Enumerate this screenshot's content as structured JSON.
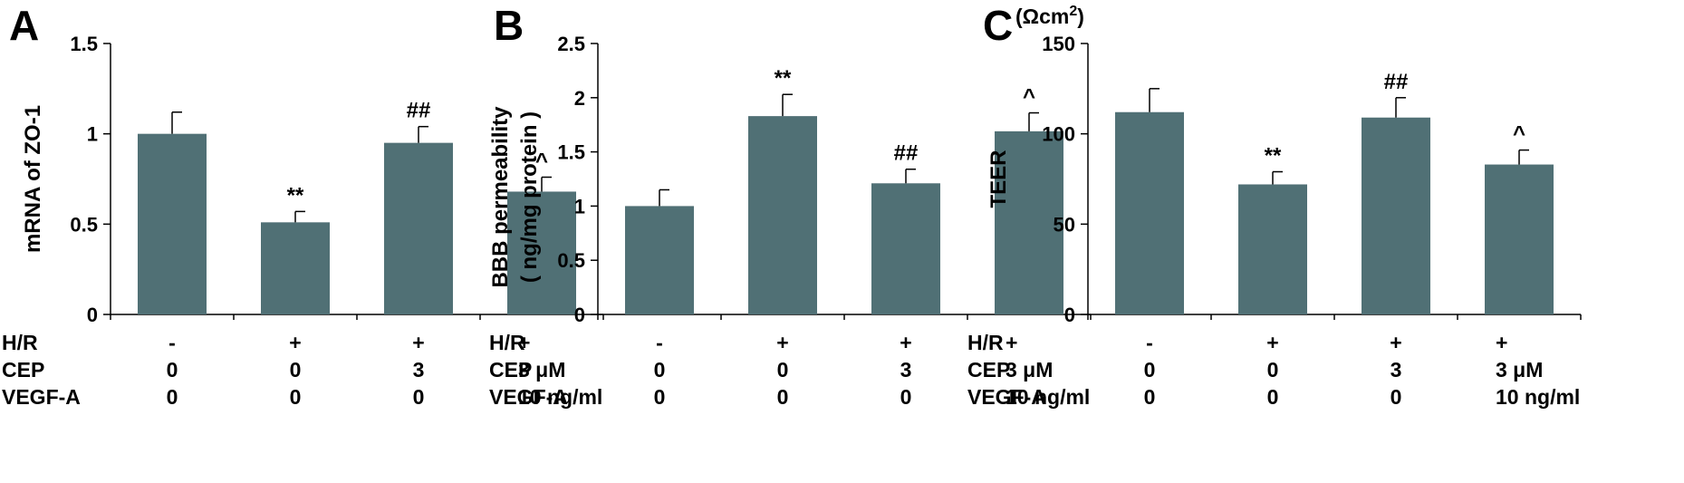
{
  "figure": {
    "row_labels": [
      "H/R",
      "CEP",
      "VEGF-A"
    ],
    "conditions": [
      [
        "-",
        "0",
        "0"
      ],
      [
        "+",
        "0",
        "0"
      ],
      [
        "+",
        "3",
        "0"
      ],
      [
        "+",
        "3 μM",
        "10 ng/ml"
      ]
    ],
    "bar_color": "#507075",
    "axis_color": "#000000"
  },
  "chart_data": [
    {
      "type": "bar",
      "panel": "A",
      "ylabel_lines": [
        "mRNA of ZO-1"
      ],
      "unit": "",
      "ylim": [
        0,
        1.5
      ],
      "yticks": [
        0,
        0.5,
        1,
        1.5
      ],
      "ytick_labels": [
        "0",
        "0.5",
        "1",
        "1.5"
      ],
      "values": [
        1.0,
        0.51,
        0.95,
        0.68
      ],
      "errors": [
        0.12,
        0.06,
        0.09,
        0.08
      ],
      "annotations": [
        "",
        "**",
        "##",
        "^"
      ]
    },
    {
      "type": "bar",
      "panel": "B",
      "ylabel_lines": [
        "BBB permeability",
        "( ng/mg protein )"
      ],
      "unit": "",
      "ylim": [
        0,
        2.5
      ],
      "yticks": [
        0,
        0.5,
        1,
        1.5,
        2,
        2.5
      ],
      "ytick_labels": [
        "0",
        "0.5",
        "1",
        "1.5",
        "2",
        "2.5"
      ],
      "values": [
        1.0,
        1.83,
        1.21,
        1.69
      ],
      "errors": [
        0.15,
        0.2,
        0.13,
        0.17
      ],
      "annotations": [
        "",
        "**",
        "##",
        "^"
      ]
    },
    {
      "type": "bar",
      "panel": "C",
      "ylabel_lines": [
        "TEER"
      ],
      "unit": "(Ωcm",
      "unit_sup": "2",
      "unit_close": ")",
      "ylim": [
        0,
        150
      ],
      "yticks": [
        0,
        50,
        100,
        150
      ],
      "ytick_labels": [
        "0",
        "50",
        "100",
        "150"
      ],
      "values": [
        112,
        72,
        109,
        83
      ],
      "errors": [
        13,
        7,
        11,
        8
      ],
      "annotations": [
        "",
        "**",
        "##",
        "^"
      ]
    }
  ]
}
